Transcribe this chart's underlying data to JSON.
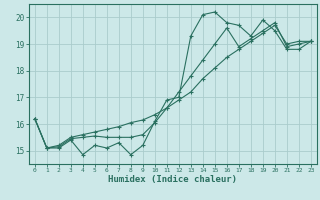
{
  "title": "",
  "xlabel": "Humidex (Indice chaleur)",
  "ylabel": "",
  "background_color": "#cce8e8",
  "grid_color": "#aacccc",
  "line_color": "#2a7060",
  "x_values": [
    0,
    1,
    2,
    3,
    4,
    5,
    6,
    7,
    8,
    9,
    10,
    11,
    12,
    13,
    14,
    15,
    16,
    17,
    18,
    19,
    20,
    21,
    22,
    23
  ],
  "line1": [
    16.2,
    15.1,
    15.1,
    15.4,
    14.85,
    15.2,
    15.1,
    15.3,
    14.85,
    15.2,
    16.1,
    16.9,
    17.0,
    19.3,
    20.1,
    20.2,
    19.8,
    19.7,
    19.3,
    19.9,
    19.5,
    18.8,
    18.8,
    19.1
  ],
  "line2": [
    16.2,
    15.1,
    15.15,
    15.45,
    15.5,
    15.55,
    15.5,
    15.5,
    15.5,
    15.6,
    16.05,
    16.6,
    17.2,
    17.8,
    18.4,
    19.0,
    19.6,
    18.9,
    19.2,
    19.5,
    19.8,
    18.9,
    19.0,
    19.1
  ],
  "line3": [
    16.2,
    15.1,
    15.2,
    15.5,
    15.6,
    15.7,
    15.8,
    15.9,
    16.05,
    16.15,
    16.35,
    16.6,
    16.9,
    17.2,
    17.7,
    18.1,
    18.5,
    18.8,
    19.1,
    19.4,
    19.7,
    19.0,
    19.1,
    19.1
  ],
  "ylim": [
    14.5,
    20.5
  ],
  "yticks": [
    15,
    16,
    17,
    18,
    19,
    20
  ],
  "xlim": [
    -0.5,
    23.5
  ]
}
